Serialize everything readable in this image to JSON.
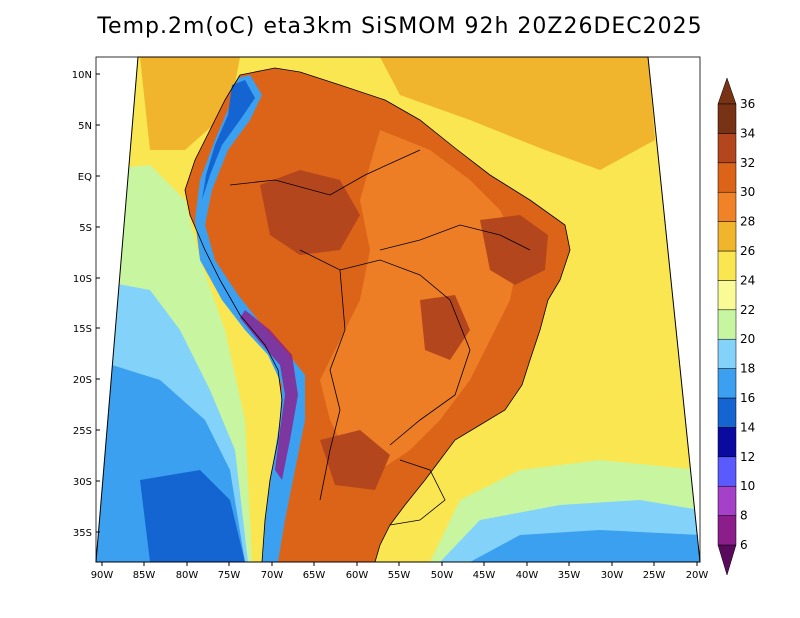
{
  "title": "Temp.2m(oC) eta3km SiSMOM 92h 20Z26DEC2025",
  "lat_ticks": [
    "10N",
    "5N",
    "EQ",
    "5S",
    "10S",
    "15S",
    "20S",
    "25S",
    "30S",
    "35S"
  ],
  "lon_ticks": [
    "90W",
    "85W",
    "80W",
    "75W",
    "70W",
    "65W",
    "60W",
    "55W",
    "50W",
    "45W",
    "40W",
    "35W",
    "30W",
    "25W",
    "20W"
  ],
  "colorbar": {
    "unit": "oC",
    "bins": [
      {
        "label": "6",
        "color": "#5a0a5c"
      },
      {
        "label": "8",
        "color": "#8c1e8c"
      },
      {
        "label": "10",
        "color": "#a540c8"
      },
      {
        "label": "12",
        "color": "#5a5aff"
      },
      {
        "label": "14",
        "color": "#0a0aa0"
      },
      {
        "label": "16",
        "color": "#1464d2"
      },
      {
        "label": "18",
        "color": "#3ca0f0"
      },
      {
        "label": "20",
        "color": "#82d2fa"
      },
      {
        "label": "22",
        "color": "#c8f5a0"
      },
      {
        "label": "24",
        "color": "#fafa96"
      },
      {
        "label": "26",
        "color": "#fae650"
      },
      {
        "label": "28",
        "color": "#f0b42d"
      },
      {
        "label": "30",
        "color": "#f08228"
      },
      {
        "label": "32",
        "color": "#dc6418"
      },
      {
        "label": "34",
        "color": "#b4461e"
      },
      {
        "label": "36",
        "color": "#783214"
      }
    ]
  }
}
